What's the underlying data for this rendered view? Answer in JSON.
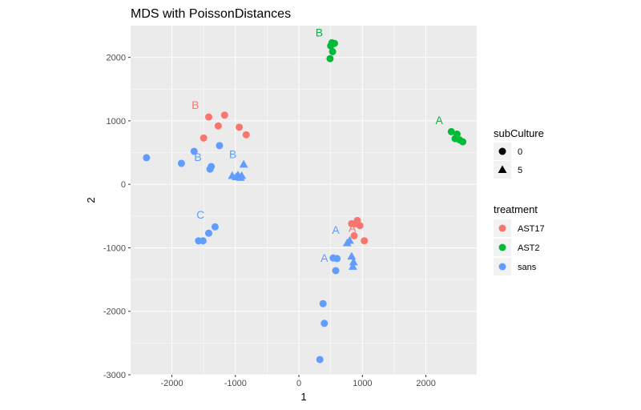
{
  "chart_data": {
    "type": "scatter",
    "title": "MDS with PoissonDistances",
    "xlabel": "1",
    "ylabel": "2",
    "xlim": [
      -2650,
      2800
    ],
    "ylim": [
      -3000,
      2500
    ],
    "x_ticks": [
      -2000,
      -1000,
      0,
      1000,
      2000
    ],
    "y_ticks": [
      2000,
      1000,
      0,
      -1000,
      -2000,
      -3000
    ],
    "x_tick_labels": [
      "-2000",
      "-1000",
      "0",
      "1000",
      "2000"
    ],
    "y_tick_labels": [
      "2000",
      "1000",
      "0",
      "-1000",
      "-2000",
      "-3000"
    ],
    "grid": true,
    "legend_placement": "right",
    "colors": {
      "AST17": "#F8766D",
      "AST2": "#00BA38",
      "sans": "#619CFF"
    },
    "series": [
      {
        "name": "AST17",
        "color": "#F8766D",
        "points": [
          {
            "x": -1420,
            "y": 1060,
            "shape": "circle"
          },
          {
            "x": -1170,
            "y": 1090,
            "shape": "circle"
          },
          {
            "x": -1270,
            "y": 920,
            "shape": "circle"
          },
          {
            "x": -940,
            "y": 900,
            "shape": "circle"
          },
          {
            "x": -830,
            "y": 780,
            "shape": "circle"
          },
          {
            "x": -1500,
            "y": 730,
            "shape": "circle"
          },
          {
            "x": 920,
            "y": -570,
            "shape": "circle"
          },
          {
            "x": 830,
            "y": -620,
            "shape": "circle"
          },
          {
            "x": 890,
            "y": -620,
            "shape": "circle"
          },
          {
            "x": 960,
            "y": -650,
            "shape": "circle"
          },
          {
            "x": 870,
            "y": -810,
            "shape": "circle"
          },
          {
            "x": 1030,
            "y": -890,
            "shape": "circle"
          }
        ]
      },
      {
        "name": "AST2",
        "color": "#00BA38",
        "points": [
          {
            "x": 520,
            "y": 2230,
            "shape": "circle"
          },
          {
            "x": 560,
            "y": 2220,
            "shape": "circle"
          },
          {
            "x": 500,
            "y": 2180,
            "shape": "circle"
          },
          {
            "x": 530,
            "y": 2090,
            "shape": "circle"
          },
          {
            "x": 490,
            "y": 1980,
            "shape": "circle"
          },
          {
            "x": 2400,
            "y": 830,
            "shape": "circle"
          },
          {
            "x": 2490,
            "y": 790,
            "shape": "circle"
          },
          {
            "x": 2460,
            "y": 720,
            "shape": "circle"
          },
          {
            "x": 2530,
            "y": 700,
            "shape": "circle"
          },
          {
            "x": 2580,
            "y": 670,
            "shape": "circle"
          }
        ]
      },
      {
        "name": "sans",
        "color": "#619CFF",
        "points": [
          {
            "x": -1250,
            "y": 610,
            "shape": "circle"
          },
          {
            "x": -1650,
            "y": 520,
            "shape": "circle"
          },
          {
            "x": -2400,
            "y": 420,
            "shape": "circle"
          },
          {
            "x": -1850,
            "y": 330,
            "shape": "circle"
          },
          {
            "x": -1380,
            "y": 280,
            "shape": "circle"
          },
          {
            "x": -1400,
            "y": 240,
            "shape": "circle"
          },
          {
            "x": -1320,
            "y": -670,
            "shape": "circle"
          },
          {
            "x": -1420,
            "y": -770,
            "shape": "circle"
          },
          {
            "x": -1580,
            "y": -890,
            "shape": "circle"
          },
          {
            "x": -1510,
            "y": -890,
            "shape": "circle"
          },
          {
            "x": 540,
            "y": -1160,
            "shape": "circle"
          },
          {
            "x": 600,
            "y": -1170,
            "shape": "circle"
          },
          {
            "x": 580,
            "y": -1360,
            "shape": "circle"
          },
          {
            "x": 380,
            "y": -1880,
            "shape": "circle"
          },
          {
            "x": 400,
            "y": -2190,
            "shape": "circle"
          },
          {
            "x": 330,
            "y": -2760,
            "shape": "circle"
          },
          {
            "x": -870,
            "y": 310,
            "shape": "triangle"
          },
          {
            "x": -1050,
            "y": 130,
            "shape": "triangle"
          },
          {
            "x": -960,
            "y": 140,
            "shape": "triangle"
          },
          {
            "x": -900,
            "y": 130,
            "shape": "triangle"
          },
          {
            "x": -990,
            "y": 110,
            "shape": "triangle"
          },
          {
            "x": -920,
            "y": 100,
            "shape": "triangle"
          },
          {
            "x": 800,
            "y": -890,
            "shape": "triangle"
          },
          {
            "x": 760,
            "y": -930,
            "shape": "triangle"
          },
          {
            "x": 830,
            "y": -1140,
            "shape": "triangle"
          },
          {
            "x": 860,
            "y": -1230,
            "shape": "triangle"
          },
          {
            "x": 850,
            "y": -1300,
            "shape": "triangle"
          }
        ]
      }
    ],
    "annotations": [
      {
        "text": "B",
        "x": -1630,
        "y": 1190,
        "color": "#F8766D"
      },
      {
        "text": "A",
        "x": 840,
        "y": -750,
        "color": "#F8766D"
      },
      {
        "text": "B",
        "x": 320,
        "y": 2330,
        "color": "#00BA38"
      },
      {
        "text": "A",
        "x": 2210,
        "y": 950,
        "color": "#00BA38"
      },
      {
        "text": "B",
        "x": -1590,
        "y": 370,
        "color": "#619CFF"
      },
      {
        "text": "B",
        "x": -1040,
        "y": 410,
        "color": "#619CFF"
      },
      {
        "text": "C",
        "x": -1550,
        "y": -540,
        "color": "#619CFF"
      },
      {
        "text": "A",
        "x": 580,
        "y": -780,
        "color": "#619CFF"
      },
      {
        "text": "A",
        "x": 400,
        "y": -1220,
        "color": "#619CFF"
      }
    ],
    "legend": {
      "subCulture": {
        "title": "subCulture",
        "items": [
          {
            "label": "0",
            "shape": "circle"
          },
          {
            "label": "5",
            "shape": "triangle"
          }
        ]
      },
      "treatment": {
        "title": "treatment",
        "items": [
          {
            "label": "AST17",
            "color": "#F8766D"
          },
          {
            "label": "AST2",
            "color": "#00BA38"
          },
          {
            "label": "sans",
            "color": "#619CFF"
          }
        ]
      }
    }
  }
}
